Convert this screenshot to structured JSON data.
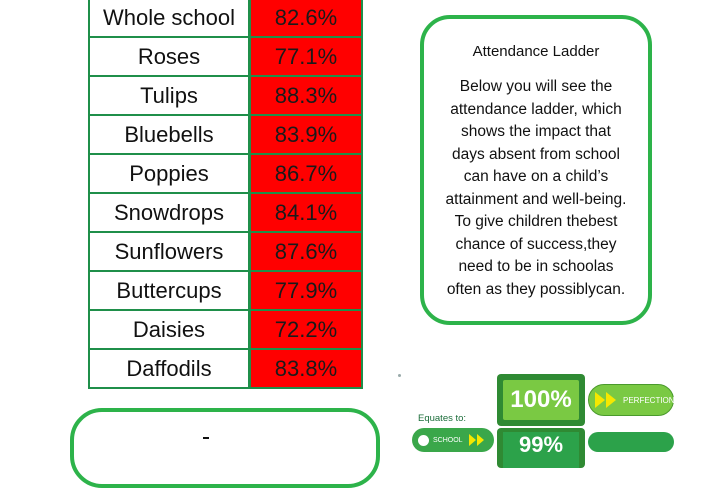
{
  "attendance_table": {
    "rows": [
      {
        "name": "Whole school",
        "value": "82.6%"
      },
      {
        "name": "Roses",
        "value": "77.1%"
      },
      {
        "name": "Tulips",
        "value": "88.3%"
      },
      {
        "name": "Bluebells",
        "value": "83.9%"
      },
      {
        "name": "Poppies",
        "value": "86.7%"
      },
      {
        "name": "Snowdrops",
        "value": "84.1%"
      },
      {
        "name": "Sunflowers",
        "value": "87.6%"
      },
      {
        "name": "Buttercups",
        "value": "77.9%"
      },
      {
        "name": "Daisies",
        "value": "72.2%"
      },
      {
        "name": "Daffodils",
        "value": "83.8%"
      }
    ]
  },
  "info_box": {
    "title": "Attendance Ladder",
    "lines": [
      "Below you will see the",
      "attendance ladder, which",
      "shows the impact that",
      "days absent from school",
      "can have on a child’s",
      "attainment and well-being.",
      "To give children thebest",
      "chance of success,they",
      "need to be in schoolas",
      "often as they possiblycan."
    ]
  },
  "ladder": {
    "equates_label": "Equates to:",
    "top_step": "100%",
    "top_pill": "PERFECTION",
    "second_step": "99%",
    "school_pill": "SCHOOL"
  },
  "colors": {
    "table_border": "#1f8f4a",
    "value_bg": "#ff0000",
    "box_border": "#2db34a"
  }
}
